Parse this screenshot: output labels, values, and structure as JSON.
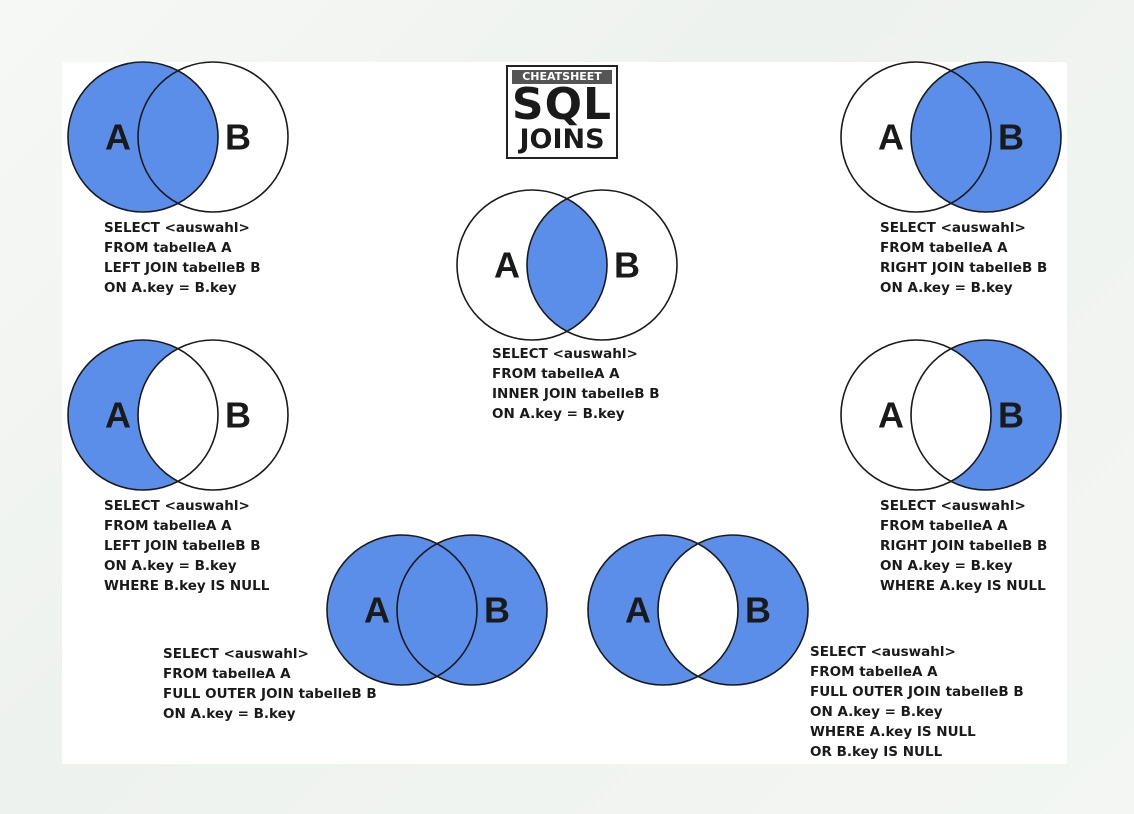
{
  "colors": {
    "fill": "#5b8ee8",
    "stroke": "#1a1a1a",
    "background": "#ffffff"
  },
  "logo": {
    "tag": "CHEATSHEET",
    "title": "SQL",
    "subtitle": "JOINS"
  },
  "labels": {
    "a": "A",
    "b": "B"
  },
  "joins": [
    {
      "id": "left-join",
      "fill": "left-full",
      "sql": [
        "SELECT <auswahl>",
        "FROM tabelleA A",
        "LEFT JOIN tabelleB B",
        "ON A.key = B.key"
      ]
    },
    {
      "id": "inner-join",
      "fill": "intersection",
      "sql": [
        "SELECT <auswahl>",
        "FROM tabelleA A",
        "INNER JOIN tabelleB B",
        "ON A.key = B.key"
      ]
    },
    {
      "id": "right-join",
      "fill": "right-full",
      "sql": [
        "SELECT <auswahl>",
        "FROM tabelleA A",
        "RIGHT JOIN tabelleB B",
        "ON A.key = B.key"
      ]
    },
    {
      "id": "left-join-null",
      "fill": "left-only",
      "sql": [
        "SELECT <auswahl>",
        "FROM tabelleA A",
        "LEFT JOIN tabelleB B",
        "ON A.key = B.key",
        "WHERE B.key IS NULL"
      ]
    },
    {
      "id": "right-join-null",
      "fill": "right-only",
      "sql": [
        "SELECT <auswahl>",
        "FROM tabelleA A",
        "RIGHT JOIN tabelleB B",
        "ON A.key = B.key",
        "WHERE A.key IS NULL"
      ]
    },
    {
      "id": "full-outer-join",
      "fill": "full",
      "sql": [
        "SELECT <auswahl>",
        "FROM tabelleA A",
        "FULL OUTER JOIN tabelleB B",
        "ON A.key = B.key"
      ]
    },
    {
      "id": "full-outer-join-null",
      "fill": "symmetric-difference",
      "sql": [
        "SELECT <auswahl>",
        "FROM tabelleA A",
        "FULL OUTER JOIN tabelleB B",
        "ON A.key = B.key",
        "WHERE A.key IS NULL",
        "OR B.key IS NULL"
      ]
    }
  ]
}
